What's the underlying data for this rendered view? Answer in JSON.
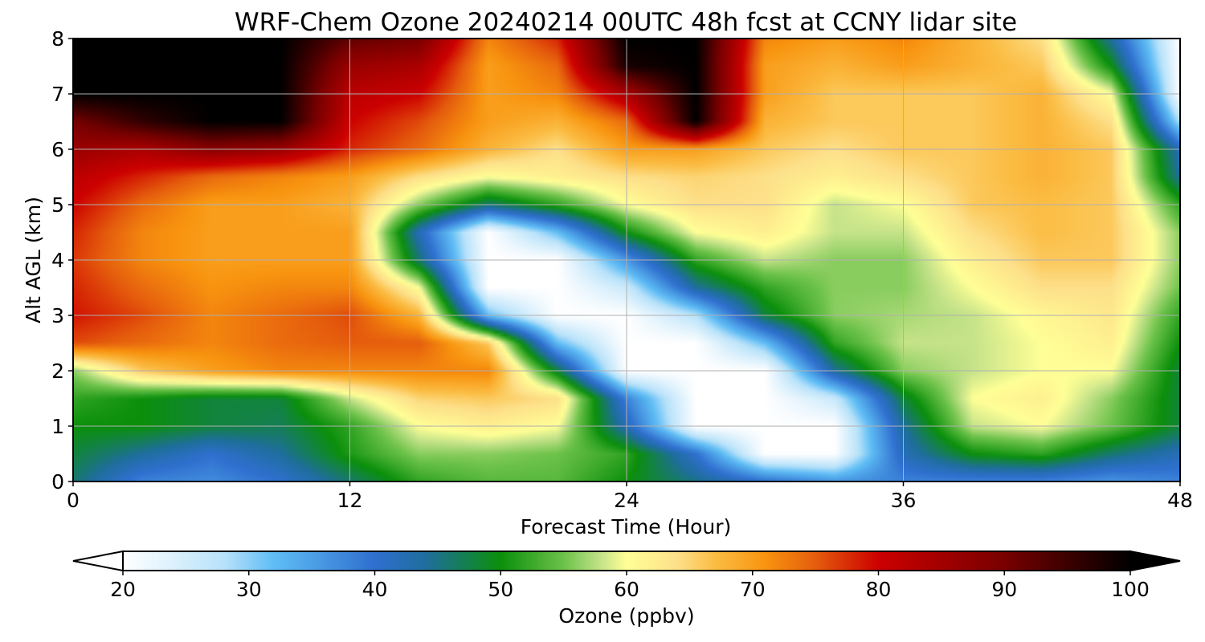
{
  "chart_data": {
    "type": "heatmap",
    "title": "WRF-Chem Ozone  20240214 00UTC 48h fcst at CCNY lidar site",
    "xlabel": "Forecast Time (Hour)",
    "ylabel": "Alt AGL (km)",
    "xlim": [
      0,
      48
    ],
    "ylim": [
      0,
      8
    ],
    "x_ticks": [
      "0",
      "12",
      "24",
      "36",
      "48"
    ],
    "y_ticks": [
      "0",
      "1",
      "2",
      "3",
      "4",
      "5",
      "6",
      "7",
      "8"
    ],
    "grid": true,
    "colorbar": {
      "label": "Ozone  (ppbv)",
      "range": [
        20,
        100
      ],
      "ticks": [
        "20",
        "30",
        "40",
        "50",
        "60",
        "70",
        "80",
        "90",
        "100"
      ],
      "extend": "both",
      "stops": [
        [
          20,
          "#ffffff"
        ],
        [
          28,
          "#b8e2fa"
        ],
        [
          32,
          "#5fbdf5"
        ],
        [
          40,
          "#2f6fcf"
        ],
        [
          44,
          "#1f6e9e"
        ],
        [
          50,
          "#0b8f0b"
        ],
        [
          55,
          "#6cc24a"
        ],
        [
          58,
          "#c6e38a"
        ],
        [
          60,
          "#ffff96"
        ],
        [
          64,
          "#fde08a"
        ],
        [
          67,
          "#fbbd44"
        ],
        [
          71,
          "#f8940f"
        ],
        [
          75,
          "#e55d0d"
        ],
        [
          80,
          "#cc0000"
        ],
        [
          90,
          "#780000"
        ],
        [
          100,
          "#000000"
        ]
      ]
    },
    "x": [
      0,
      3,
      6,
      9,
      12,
      15,
      18,
      21,
      24,
      27,
      30,
      33,
      36,
      39,
      42,
      45,
      48
    ],
    "y": [
      0,
      0.5,
      1,
      1.5,
      2,
      2.5,
      3,
      3.5,
      4,
      4.5,
      5,
      5.5,
      6,
      6.5,
      7,
      7.5,
      8
    ],
    "z": [
      [
        46,
        38,
        37,
        40,
        46,
        52,
        54,
        54,
        50,
        45,
        40,
        36,
        38,
        38,
        38,
        36,
        38
      ],
      [
        48,
        44,
        40,
        44,
        51,
        56,
        56,
        55,
        52,
        40,
        20,
        20,
        42,
        50,
        52,
        46,
        42
      ],
      [
        50,
        50,
        48,
        47,
        52,
        60,
        62,
        60,
        42,
        20,
        20,
        20,
        44,
        58,
        60,
        55,
        48
      ],
      [
        52,
        50,
        48,
        48,
        58,
        65,
        66,
        64,
        38,
        20,
        20,
        26,
        48,
        60,
        62,
        56,
        48
      ],
      [
        56,
        66,
        70,
        72,
        72,
        72,
        72,
        48,
        20,
        20,
        20,
        44,
        56,
        58,
        60,
        60,
        48
      ],
      [
        76,
        74,
        72,
        74,
        75,
        75,
        66,
        32,
        20,
        20,
        32,
        52,
        58,
        58,
        60,
        62,
        50
      ],
      [
        79,
        76,
        72,
        74,
        76,
        68,
        32,
        20,
        20,
        28,
        48,
        56,
        57,
        58,
        61,
        63,
        52
      ],
      [
        78,
        74,
        71,
        72,
        72,
        60,
        20,
        20,
        26,
        44,
        52,
        56,
        56,
        60,
        64,
        64,
        55
      ],
      [
        77,
        72,
        70,
        70,
        70,
        46,
        20,
        20,
        36,
        52,
        58,
        56,
        56,
        62,
        66,
        66,
        56
      ],
      [
        78,
        72,
        70,
        70,
        70,
        42,
        20,
        32,
        50,
        60,
        62,
        58,
        58,
        64,
        67,
        66,
        56
      ],
      [
        80,
        74,
        70,
        70,
        68,
        56,
        46,
        52,
        60,
        64,
        64,
        58,
        60,
        66,
        67,
        66,
        52
      ],
      [
        82,
        78,
        74,
        72,
        70,
        64,
        60,
        62,
        64,
        65,
        64,
        62,
        64,
        66,
        68,
        66,
        44
      ],
      [
        86,
        84,
        88,
        86,
        78,
        74,
        68,
        64,
        70,
        70,
        66,
        64,
        66,
        66,
        68,
        66,
        42
      ],
      [
        90,
        96,
        100,
        100,
        80,
        76,
        70,
        68,
        74,
        100,
        68,
        66,
        66,
        66,
        68,
        64,
        28
      ],
      [
        100,
        100,
        100,
        100,
        82,
        80,
        70,
        72,
        84,
        100,
        70,
        66,
        66,
        66,
        68,
        60,
        20
      ],
      [
        100,
        100,
        100,
        100,
        86,
        84,
        70,
        74,
        98,
        100,
        70,
        68,
        70,
        68,
        66,
        50,
        20
      ],
      [
        100,
        100,
        100,
        100,
        92,
        90,
        72,
        78,
        100,
        100,
        72,
        70,
        72,
        68,
        64,
        44,
        20
      ]
    ]
  }
}
